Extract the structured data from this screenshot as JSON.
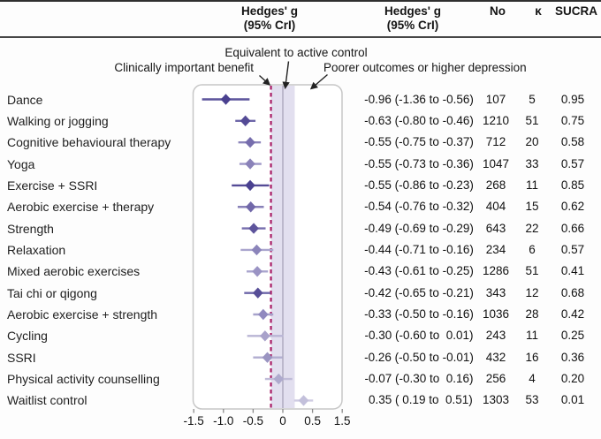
{
  "header": {
    "hedges_g": "Hedges' g",
    "cri": "(95% CrI)",
    "no": "No",
    "kappa": "κ",
    "sucra": "SUCRA"
  },
  "annotations": {
    "equivalent": "Equivalent to active control",
    "benefit": "Clinically important benefit",
    "poorer": "Poorer outcomes or higher depression"
  },
  "colors": {
    "dashed_reference": "#a81d66",
    "equivalence_band": "#e2dfef",
    "zero_line": "#a39eb4",
    "box_border": "#c7c7c7",
    "leader_line": "#222222"
  },
  "chart_data": {
    "type": "forest",
    "x_axis_labels": [
      "-1.5",
      "-1.0",
      "-0.5",
      "0",
      "0.5",
      "1.5"
    ],
    "reference_line": -0.2,
    "equivalence_band": [
      -0.2,
      0.2
    ],
    "zero_line": 0,
    "rows": [
      {
        "label": "Dance",
        "estimate": -0.96,
        "ci_low": -1.36,
        "ci_high": -0.56,
        "text": "-0.96 (-1.36 to -0.56)",
        "no": "107",
        "k": "5",
        "sucra": "0.95",
        "color": "#4a4190",
        "ci_color": "#5c549c"
      },
      {
        "label": "Walking or jogging",
        "estimate": -0.63,
        "ci_low": -0.8,
        "ci_high": -0.46,
        "text": "-0.63 (-0.80 to -0.46)",
        "no": "1210",
        "k": "51",
        "sucra": "0.75",
        "color": "#544b96",
        "ci_color": "#6d66a8"
      },
      {
        "label": "Cognitive behavioural therapy",
        "estimate": -0.55,
        "ci_low": -0.75,
        "ci_high": -0.37,
        "text": "-0.55 (-0.75 to -0.37)",
        "no": "712",
        "k": "20",
        "sucra": "0.58",
        "color": "#766dad",
        "ci_color": "#8d86bb"
      },
      {
        "label": "Yoga",
        "estimate": -0.55,
        "ci_low": -0.73,
        "ci_high": -0.36,
        "text": "-0.55 (-0.73 to -0.36)",
        "no": "1047",
        "k": "33",
        "sucra": "0.57",
        "color": "#8a82b9",
        "ci_color": "#9c96c6"
      },
      {
        "label": "Exercise + SSRI",
        "estimate": -0.55,
        "ci_low": -0.86,
        "ci_high": -0.23,
        "text": "-0.55 (-0.86 to -0.23)",
        "no": "268",
        "k": "11",
        "sucra": "0.85",
        "color": "#4a4190",
        "ci_color": "#544b96"
      },
      {
        "label": "Aerobic exercise + therapy",
        "estimate": -0.54,
        "ci_low": -0.76,
        "ci_high": -0.32,
        "text": "-0.54 (-0.76 to -0.32)",
        "no": "404",
        "k": "15",
        "sucra": "0.62",
        "color": "#7168a9",
        "ci_color": "#8881b8"
      },
      {
        "label": "Strength",
        "estimate": -0.49,
        "ci_low": -0.69,
        "ci_high": -0.29,
        "text": "-0.49 (-0.69 to -0.29)",
        "no": "643",
        "k": "22",
        "sucra": "0.66",
        "color": "#5d549c",
        "ci_color": "#766dad"
      },
      {
        "label": "Relaxation",
        "estimate": -0.44,
        "ci_low": -0.71,
        "ci_high": -0.16,
        "text": "-0.44 (-0.71 to -0.16)",
        "no": "234",
        "k": "6",
        "sucra": "0.57",
        "color": "#8b84ba",
        "ci_color": "#aaa5ce"
      },
      {
        "label": "Mixed aerobic exercises",
        "estimate": -0.43,
        "ci_low": -0.61,
        "ci_high": -0.25,
        "text": "-0.43 (-0.61 to -0.25)",
        "no": "1286",
        "k": "51",
        "sucra": "0.41",
        "color": "#9a93c4",
        "ci_color": "#aaa5ce"
      },
      {
        "label": "Tai chi or qigong",
        "estimate": -0.42,
        "ci_low": -0.65,
        "ci_high": -0.21,
        "text": "-0.42 (-0.65 to -0.21)",
        "no": "343",
        "k": "12",
        "sucra": "0.68",
        "color": "#574e97",
        "ci_color": "#6d66a8"
      },
      {
        "label": "Aerobic exercise + strength",
        "estimate": -0.33,
        "ci_low": -0.5,
        "ci_high": -0.16,
        "text": "-0.33 (-0.50 to -0.16)",
        "no": "1036",
        "k": "28",
        "sucra": "0.42",
        "color": "#9089bf",
        "ci_color": "#a7a2cb"
      },
      {
        "label": "Cycling",
        "estimate": -0.3,
        "ci_low": -0.6,
        "ci_high": 0.01,
        "text": "-0.30 (-0.60 to  0.01)",
        "no": "243",
        "k": "11",
        "sucra": "0.25",
        "color": "#a8a2ca",
        "ci_color": "#b9b5d4"
      },
      {
        "label": "SSRI",
        "estimate": -0.26,
        "ci_low": -0.5,
        "ci_high": -0.01,
        "text": "-0.26 (-0.50 to -0.01)",
        "no": "432",
        "k": "16",
        "sucra": "0.36",
        "color": "#9a94c1",
        "ci_color": "#b2aed0"
      },
      {
        "label": "Physical activity counselling",
        "estimate": -0.07,
        "ci_low": -0.3,
        "ci_high": 0.16,
        "text": "-0.07 (-0.30 to  0.16)",
        "no": "256",
        "k": "4",
        "sucra": "0.20",
        "color": "#aeaacd",
        "ci_color": "#c0bcd8"
      },
      {
        "label": "Waitlist control",
        "estimate": 0.35,
        "ci_low": 0.19,
        "ci_high": 0.51,
        "text": " 0.35 ( 0.19 to  0.51)",
        "no": "1303",
        "k": "53",
        "sucra": "0.01",
        "color": "#c3c0db",
        "ci_color": "#cfcce2"
      }
    ]
  }
}
